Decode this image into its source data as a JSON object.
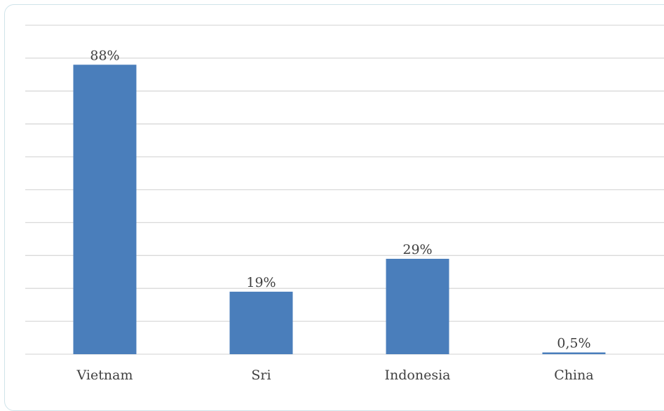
{
  "chart_data": {
    "type": "bar",
    "categories": [
      "Vietnam",
      "Sri",
      "Indonesia",
      "China"
    ],
    "values": [
      88,
      19,
      29,
      0.5
    ],
    "data_labels": [
      "88%",
      "19%",
      "29%",
      "0,5%"
    ],
    "ylim": [
      0,
      100
    ],
    "gridlines": 10,
    "grid": true,
    "legend": "none",
    "bar_color": "#4a7ebb",
    "gridline_color": "#d9d9d9",
    "text_color": "#404040",
    "frame_color": "#cfe3ea"
  }
}
